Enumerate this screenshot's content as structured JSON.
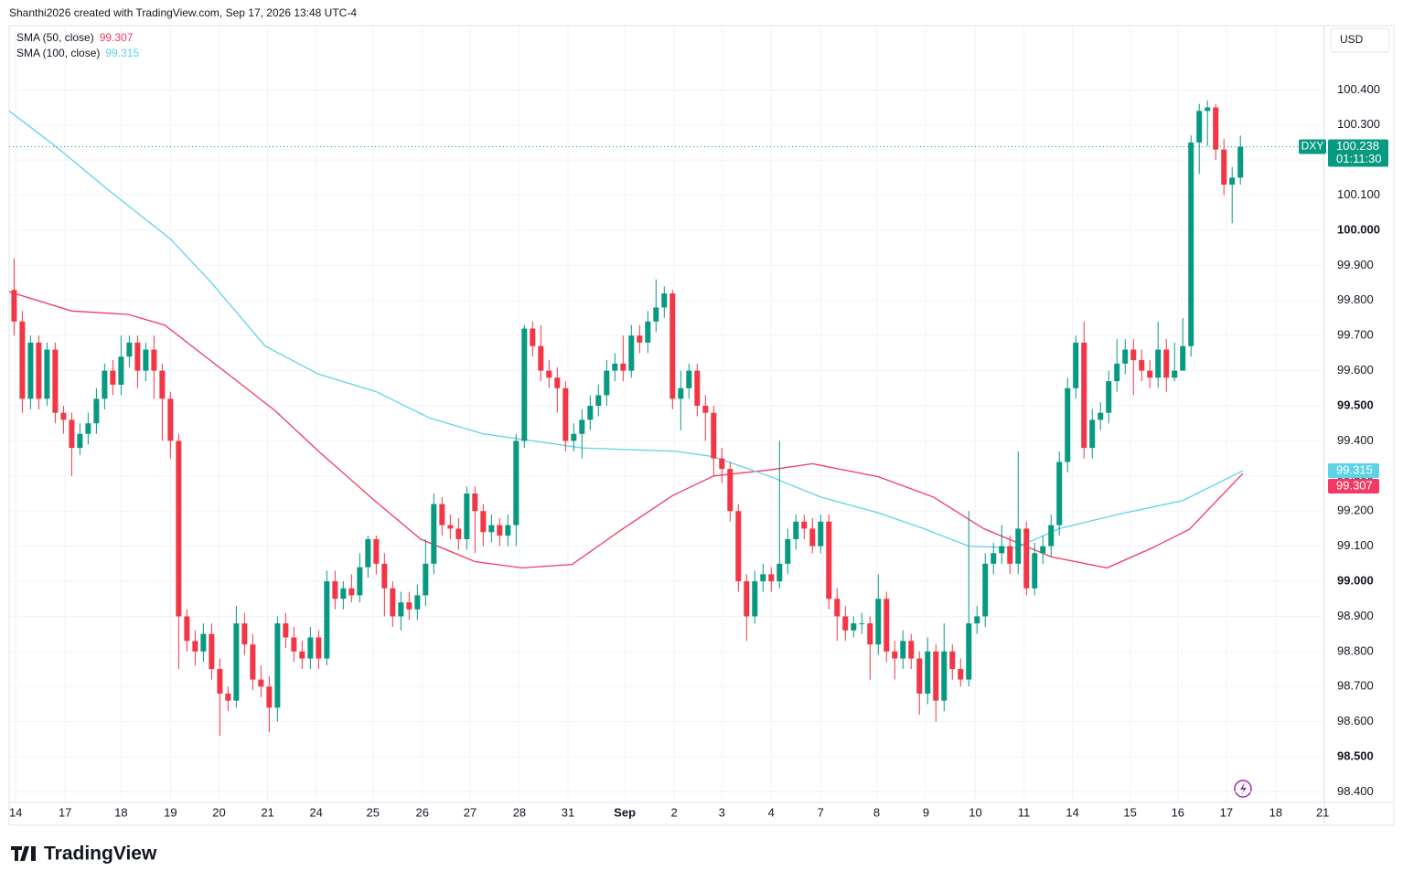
{
  "header": "Shanthi2026 created with TradingView.com, Sep 17, 2026 13:48 UTC-4",
  "logo": "TradingView",
  "chart_data": {
    "type": "candlestick",
    "symbol": "DXY",
    "currency": "USD",
    "countdown": "01:11:30",
    "up_color": "#089981",
    "down_color": "#f23645",
    "grid": true,
    "xlim": [
      -0.6,
      159.2
    ],
    "ylim": [
      98.37,
      100.63
    ],
    "xticks": [
      {
        "value": 0.2,
        "label": "14"
      },
      {
        "value": 6.2,
        "label": "17"
      },
      {
        "value": 13,
        "label": "18"
      },
      {
        "value": 19,
        "label": "19"
      },
      {
        "value": 24.9,
        "label": "20"
      },
      {
        "value": 30.8,
        "label": "21"
      },
      {
        "value": 36.7,
        "label": "24"
      },
      {
        "value": 43.6,
        "label": "25"
      },
      {
        "value": 49.6,
        "label": "26"
      },
      {
        "value": 55.4,
        "label": "27"
      },
      {
        "value": 61.4,
        "label": "28"
      },
      {
        "value": 67.3,
        "label": "31"
      },
      {
        "value": 74.2,
        "label": "Sep"
      },
      {
        "value": 80.2,
        "label": "2"
      },
      {
        "value": 86,
        "label": "3"
      },
      {
        "value": 92,
        "label": "4"
      },
      {
        "value": 98,
        "label": "7"
      },
      {
        "value": 104.8,
        "label": "8"
      },
      {
        "value": 110.8,
        "label": "9"
      },
      {
        "value": 116.8,
        "label": "10"
      },
      {
        "value": 122.7,
        "label": "11"
      },
      {
        "value": 128.6,
        "label": "14"
      },
      {
        "value": 135.6,
        "label": "15"
      },
      {
        "value": 141.4,
        "label": "16"
      },
      {
        "value": 147.3,
        "label": "17"
      },
      {
        "value": 153.3,
        "label": "18"
      },
      {
        "value": 159,
        "label": "21"
      }
    ],
    "yticks": [
      {
        "value": 98.4,
        "label": "98.400"
      },
      {
        "value": 98.5,
        "label": "98.500"
      },
      {
        "value": 98.6,
        "label": "98.600"
      },
      {
        "value": 98.7,
        "label": "98.700"
      },
      {
        "value": 98.8,
        "label": "98.800"
      },
      {
        "value": 98.9,
        "label": "98.900"
      },
      {
        "value": 99.0,
        "label": "99.000"
      },
      {
        "value": 99.1,
        "label": "99.100"
      },
      {
        "value": 99.2,
        "label": "99.200"
      },
      {
        "value": 99.3,
        "label": "99.300"
      },
      {
        "value": 99.4,
        "label": "99.400"
      },
      {
        "value": 99.5,
        "label": "99.500"
      },
      {
        "value": 99.6,
        "label": "99.600"
      },
      {
        "value": 99.7,
        "label": "99.700"
      },
      {
        "value": 99.8,
        "label": "99.800"
      },
      {
        "value": 99.9,
        "label": "99.900"
      },
      {
        "value": 100.0,
        "label": "100.000"
      },
      {
        "value": 100.1,
        "label": "100.100"
      },
      {
        "value": 100.2,
        "label": "100.200"
      },
      {
        "value": 100.3,
        "label": "100.300"
      },
      {
        "value": 100.4,
        "label": "100.400"
      }
    ],
    "open": [
      99.83,
      99.74,
      99.52,
      99.68,
      99.52,
      99.66,
      99.48,
      99.46,
      99.38,
      99.42,
      99.45,
      99.52,
      99.6,
      99.56,
      99.64,
      99.68,
      99.6,
      99.66,
      99.6,
      99.52,
      99.4,
      98.9,
      98.83,
      98.8,
      98.85,
      98.75,
      98.68,
      98.66,
      98.88,
      98.82,
      98.72,
      98.7,
      98.64,
      98.88,
      98.84,
      98.8,
      98.78,
      98.84,
      98.78,
      99.0,
      98.95,
      98.98,
      98.96,
      99.04,
      99.12,
      99.05,
      98.98,
      98.9,
      98.94,
      98.92,
      98.96,
      99.05,
      99.22,
      99.16,
      99.15,
      99.12,
      99.25,
      99.2,
      99.14,
      99.16,
      99.13,
      99.16,
      99.4,
      99.72,
      99.67,
      99.6,
      99.58,
      99.55,
      99.4,
      99.42,
      99.46,
      99.5,
      99.53,
      99.6,
      99.62,
      99.6,
      99.7,
      99.68,
      99.74,
      99.78,
      99.82,
      99.52,
      99.55,
      99.6,
      99.5,
      99.48,
      99.35,
      99.32,
      99.2,
      99.0,
      98.9,
      99.0,
      99.02,
      99.0,
      99.05,
      99.12,
      99.17,
      99.15,
      99.1,
      99.17,
      98.95,
      98.9,
      98.86,
      98.88,
      98.88,
      98.82,
      98.95,
      98.8,
      98.78,
      98.83,
      98.78,
      98.68,
      98.8,
      98.66,
      98.8,
      98.75,
      98.72,
      98.88,
      98.9,
      99.05,
      99.08,
      99.1,
      99.05,
      99.15,
      98.98,
      99.08,
      99.1,
      99.16,
      99.34,
      99.55,
      99.68,
      99.38,
      99.46,
      99.48,
      99.57,
      99.62,
      99.66,
      99.63,
      99.6,
      99.58,
      99.66,
      99.58,
      99.6,
      99.67,
      100.25,
      100.34,
      100.35,
      100.23,
      100.13,
      100.15
    ],
    "high": [
      99.92,
      99.77,
      99.7,
      99.7,
      99.68,
      99.68,
      99.5,
      99.48,
      99.45,
      99.48,
      99.55,
      99.62,
      99.63,
      99.7,
      99.7,
      99.7,
      99.68,
      99.7,
      99.62,
      99.54,
      99.42,
      98.92,
      98.86,
      98.88,
      98.88,
      98.78,
      98.7,
      98.93,
      98.91,
      98.85,
      98.76,
      98.73,
      98.9,
      98.91,
      98.87,
      98.83,
      98.87,
      98.86,
      99.03,
      99.03,
      99.0,
      99.02,
      99.08,
      99.13,
      99.13,
      99.08,
      99.0,
      98.97,
      98.97,
      98.99,
      99.12,
      99.25,
      99.24,
      99.19,
      99.18,
      99.27,
      99.27,
      99.22,
      99.19,
      99.18,
      99.19,
      99.42,
      99.73,
      99.74,
      99.73,
      99.63,
      99.61,
      99.57,
      99.45,
      99.49,
      99.53,
      99.56,
      99.63,
      99.65,
      99.7,
      99.73,
      99.73,
      99.77,
      99.86,
      99.84,
      99.83,
      99.6,
      99.62,
      99.62,
      99.53,
      99.5,
      99.38,
      99.34,
      99.22,
      99.02,
      99.03,
      99.05,
      99.04,
      99.4,
      99.15,
      99.19,
      99.19,
      99.18,
      99.19,
      99.19,
      98.98,
      98.93,
      98.9,
      98.91,
      98.9,
      99.02,
      98.97,
      98.83,
      98.86,
      98.85,
      98.8,
      98.84,
      98.82,
      98.88,
      98.82,
      98.78,
      99.2,
      98.93,
      99.08,
      99.11,
      99.16,
      99.13,
      99.37,
      99.17,
      99.11,
      99.13,
      99.19,
      99.37,
      99.58,
      99.7,
      99.74,
      99.49,
      99.51,
      99.6,
      99.69,
      99.69,
      99.69,
      99.66,
      99.63,
      99.74,
      99.69,
      99.68,
      99.75,
      100.27,
      100.36,
      100.37,
      100.36,
      100.26,
      100.18,
      100.27
    ],
    "low": [
      99.7,
      99.48,
      99.49,
      99.49,
      99.5,
      99.45,
      99.42,
      99.3,
      99.36,
      99.39,
      99.42,
      99.49,
      99.53,
      99.53,
      99.61,
      99.55,
      99.57,
      99.52,
      99.4,
      99.35,
      98.75,
      98.8,
      98.76,
      98.77,
      98.72,
      98.56,
      98.63,
      98.64,
      98.79,
      98.69,
      98.67,
      98.57,
      98.6,
      98.81,
      98.77,
      98.75,
      98.75,
      98.75,
      98.76,
      98.92,
      98.92,
      98.94,
      98.94,
      99.01,
      99.02,
      98.9,
      98.87,
      98.86,
      98.89,
      98.89,
      98.93,
      99.02,
      99.13,
      99.12,
      99.09,
      99.09,
      99.08,
      99.1,
      99.11,
      99.1,
      99.1,
      99.1,
      99.38,
      99.64,
      99.57,
      99.55,
      99.48,
      99.37,
      99.37,
      99.35,
      99.43,
      99.47,
      99.5,
      99.57,
      99.57,
      99.58,
      99.65,
      99.65,
      99.71,
      99.75,
      99.49,
      99.43,
      99.52,
      99.47,
      99.4,
      99.3,
      99.28,
      99.17,
      98.97,
      98.83,
      98.88,
      98.97,
      98.97,
      98.98,
      99.02,
      99.09,
      99.12,
      99.08,
      99.08,
      98.92,
      98.83,
      98.83,
      98.84,
      98.85,
      98.72,
      98.79,
      98.77,
      98.72,
      98.75,
      98.75,
      98.62,
      98.65,
      98.6,
      98.63,
      98.72,
      98.7,
      98.7,
      98.85,
      98.87,
      99.02,
      99.05,
      99.02,
      99.02,
      98.96,
      98.96,
      99.05,
      99.07,
      99.13,
      99.31,
      99.52,
      99.35,
      99.35,
      99.43,
      99.45,
      99.54,
      99.59,
      99.53,
      99.57,
      99.55,
      99.55,
      99.54,
      99.57,
      99.61,
      99.64,
      100.16,
      100.24,
      100.2,
      100.1,
      100.02,
      100.13
    ],
    "close": [
      99.74,
      99.52,
      99.68,
      99.52,
      99.66,
      99.48,
      99.46,
      99.38,
      99.42,
      99.45,
      99.52,
      99.6,
      99.56,
      99.64,
      99.68,
      99.6,
      99.66,
      99.6,
      99.52,
      99.4,
      98.9,
      98.83,
      98.8,
      98.85,
      98.75,
      98.68,
      98.66,
      98.88,
      98.82,
      98.72,
      98.7,
      98.64,
      98.88,
      98.84,
      98.8,
      98.78,
      98.84,
      98.78,
      99.0,
      98.95,
      98.98,
      98.96,
      99.04,
      99.12,
      99.05,
      98.98,
      98.9,
      98.94,
      98.92,
      98.96,
      99.05,
      99.22,
      99.16,
      99.15,
      99.12,
      99.25,
      99.2,
      99.14,
      99.16,
      99.13,
      99.16,
      99.4,
      99.72,
      99.67,
      99.6,
      99.58,
      99.55,
      99.4,
      99.42,
      99.46,
      99.5,
      99.53,
      99.6,
      99.62,
      99.6,
      99.7,
      99.68,
      99.74,
      99.78,
      99.82,
      99.52,
      99.55,
      99.6,
      99.5,
      99.48,
      99.35,
      99.32,
      99.2,
      99.0,
      98.9,
      99.0,
      99.02,
      99.0,
      99.05,
      99.12,
      99.17,
      99.15,
      99.1,
      99.17,
      98.95,
      98.9,
      98.86,
      98.88,
      98.88,
      98.82,
      98.95,
      98.8,
      98.78,
      98.83,
      98.78,
      98.68,
      98.8,
      98.66,
      98.8,
      98.75,
      98.72,
      98.88,
      98.9,
      99.05,
      99.08,
      99.1,
      99.05,
      99.15,
      98.98,
      99.08,
      99.1,
      99.16,
      99.34,
      99.55,
      99.68,
      99.38,
      99.46,
      99.48,
      99.57,
      99.62,
      99.66,
      99.63,
      99.6,
      99.58,
      99.66,
      99.58,
      99.6,
      99.67,
      100.25,
      100.34,
      100.35,
      100.23,
      100.13,
      100.15,
      100.238
    ],
    "series": [
      {
        "name": "SMA (50, close)",
        "color": "#f23a63",
        "x": [
          -0.6,
          7,
          13.9,
          18.3,
          26,
          31.7,
          37,
          44,
          49.4,
          56,
          61.7,
          67.8,
          74,
          80,
          85,
          91.7,
          97,
          105,
          111.7,
          117.8,
          126,
          132.8,
          138.3,
          142.8,
          149.3
        ],
        "values": [
          99.825,
          99.77,
          99.76,
          99.73,
          99.59,
          99.486,
          99.37,
          99.226,
          99.12,
          99.056,
          99.038,
          99.048,
          99.15,
          99.244,
          99.3,
          99.317,
          99.335,
          99.298,
          99.24,
          99.15,
          99.07,
          99.038,
          99.095,
          99.148,
          99.307
        ]
      },
      {
        "name": "SMA (100, close)",
        "color": "#5fd3e6",
        "x": [
          -0.6,
          5,
          11.7,
          19,
          24,
          30.5,
          37,
          44,
          50.5,
          57,
          63,
          69,
          80.5,
          85,
          91.7,
          98,
          105,
          110.5,
          116,
          121.7,
          127,
          134,
          142,
          149.3
        ],
        "values": [
          100.34,
          100.24,
          100.11,
          99.975,
          99.85,
          99.67,
          99.59,
          99.54,
          99.465,
          99.42,
          99.4,
          99.38,
          99.37,
          99.355,
          99.3,
          99.24,
          99.195,
          99.15,
          99.1,
          99.095,
          99.15,
          99.19,
          99.23,
          99.315
        ]
      }
    ]
  }
}
